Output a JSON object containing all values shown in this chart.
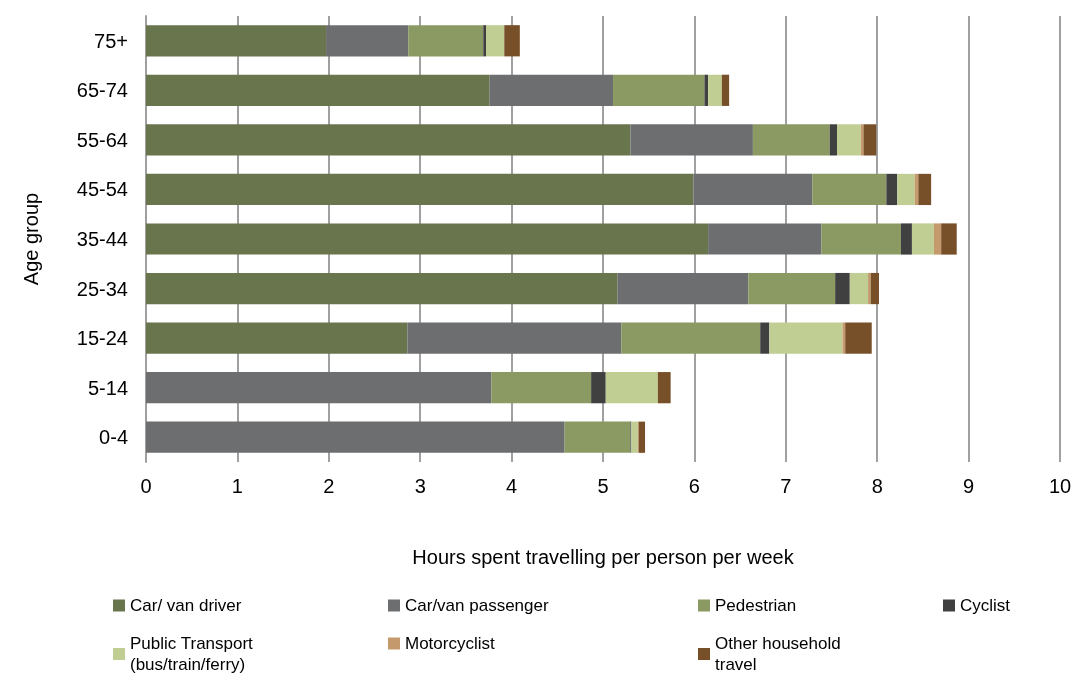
{
  "chart_data": {
    "type": "bar",
    "orientation": "horizontal",
    "stacked": true,
    "xlabel": "Hours spent travelling per person per week",
    "ylabel": "Age group",
    "categories": [
      "75+",
      "65-74",
      "55-64",
      "45-54",
      "35-44",
      "25-34",
      "15-24",
      "5-14",
      "0-4"
    ],
    "xlim": [
      0,
      10
    ],
    "xticks": [
      0,
      1,
      2,
      3,
      4,
      5,
      6,
      7,
      8,
      9,
      10
    ],
    "grid": "x",
    "legend": "bottom",
    "series": [
      {
        "name": "Car/ van driver",
        "color": "#68754d",
        "values": [
          1.97,
          3.76,
          5.3,
          5.99,
          6.15,
          5.16,
          2.86,
          0,
          0
        ]
      },
      {
        "name": "Car/van passenger",
        "color": "#6d6e70",
        "values": [
          0.9,
          1.35,
          1.34,
          1.3,
          1.24,
          1.43,
          2.34,
          3.78,
          4.58
        ]
      },
      {
        "name": "Pedestrian",
        "color": "#8a9a62",
        "values": [
          0.82,
          1.0,
          0.84,
          0.81,
          0.87,
          0.95,
          1.52,
          1.09,
          0.72
        ]
      },
      {
        "name": "Cyclist",
        "color": "#404040",
        "values": [
          0.03,
          0.04,
          0.08,
          0.12,
          0.12,
          0.16,
          0.1,
          0.16,
          0.01
        ]
      },
      {
        "name": "Public Transport (bus/train/ferry)",
        "color": "#c0ce94",
        "values": [
          0.2,
          0.15,
          0.26,
          0.19,
          0.24,
          0.2,
          0.8,
          0.57,
          0.07
        ]
      },
      {
        "name": "Motorcyclist",
        "color": "#c49a6c",
        "values": [
          0,
          0,
          0.03,
          0.04,
          0.08,
          0.03,
          0.03,
          0,
          0.01
        ]
      },
      {
        "name": "Other household travel",
        "color": "#774f28",
        "values": [
          0.17,
          0.08,
          0.14,
          0.14,
          0.17,
          0.09,
          0.29,
          0.14,
          0.07
        ]
      }
    ]
  }
}
